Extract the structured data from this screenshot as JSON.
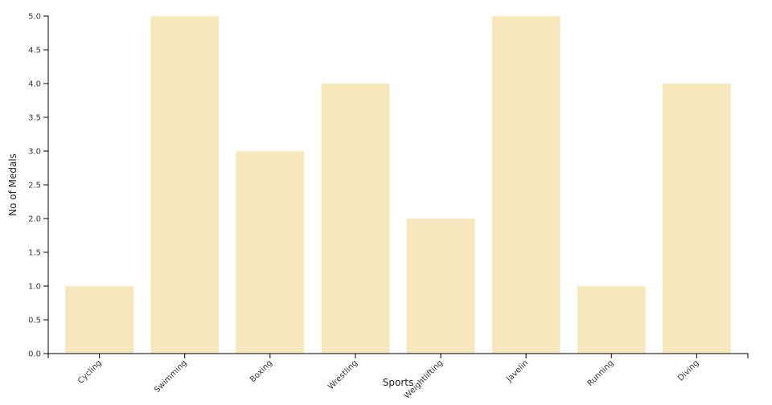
{
  "chart_data": {
    "type": "bar",
    "categories": [
      "Cycling",
      "Swimming",
      "Boxing",
      "Wrestling",
      "Weightlifting",
      "Javelin",
      "Running",
      "Diving"
    ],
    "values": [
      1,
      5,
      3,
      4,
      2,
      5,
      1,
      4
    ],
    "xlabel": "Sports",
    "ylabel": "No of Medals",
    "ylim": [
      0,
      5
    ],
    "yticks": [
      "0.0",
      "0.5",
      "1.0",
      "1.5",
      "2.0",
      "2.5",
      "3.0",
      "3.5",
      "4.0",
      "4.5",
      "5.0"
    ],
    "grid": false,
    "bar_color": "#f7e7bd",
    "axis_color": "#000000"
  }
}
